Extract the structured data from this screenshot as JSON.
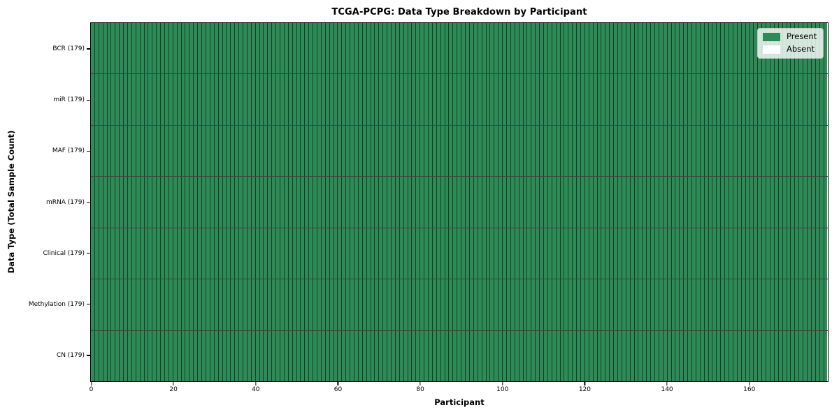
{
  "chart_data": {
    "type": "heatmap",
    "title": "TCGA-PCPG: Data Type Breakdown by Participant",
    "xlabel": "Participant",
    "ylabel": "Data Type (Total Sample Count)",
    "x_ticks": [
      0,
      20,
      40,
      60,
      80,
      100,
      120,
      140,
      160
    ],
    "x_range": [
      0,
      179
    ],
    "n_participants": 179,
    "categories": [
      "BCR (179)",
      "miR (179)",
      "MAF (179)",
      "mRNA (179)",
      "Clinical (179)",
      "Methylation (179)",
      "CN (179)"
    ],
    "rows": [
      {
        "label": "BCR (179)",
        "data_type": "BCR",
        "total_samples": 179,
        "present": 179,
        "absent": 0
      },
      {
        "label": "miR (179)",
        "data_type": "miR",
        "total_samples": 179,
        "present": 179,
        "absent": 0
      },
      {
        "label": "MAF (179)",
        "data_type": "MAF",
        "total_samples": 179,
        "present": 179,
        "absent": 0
      },
      {
        "label": "mRNA (179)",
        "data_type": "mRNA",
        "total_samples": 179,
        "present": 179,
        "absent": 0
      },
      {
        "label": "Clinical (179)",
        "data_type": "Clinical",
        "total_samples": 179,
        "present": 179,
        "absent": 0
      },
      {
        "label": "Methylation (179)",
        "data_type": "Methylation",
        "total_samples": 179,
        "present": 179,
        "absent": 0
      },
      {
        "label": "CN (179)",
        "data_type": "CN",
        "total_samples": 179,
        "present": 179,
        "absent": 0
      }
    ],
    "legend": {
      "position": "upper right",
      "entries": [
        {
          "label": "Present",
          "color": "#2e8b57"
        },
        {
          "label": "Absent",
          "color": "#ffffff"
        }
      ]
    },
    "colors": {
      "present": "#2e8b57",
      "absent": "#ffffff",
      "cell_edge": "rgba(0,0,0,0.55)",
      "row_divider": "rgba(0,0,0,0.75)",
      "spine": "#000000"
    },
    "grid": "cell-edges",
    "legend_visible": true
  }
}
